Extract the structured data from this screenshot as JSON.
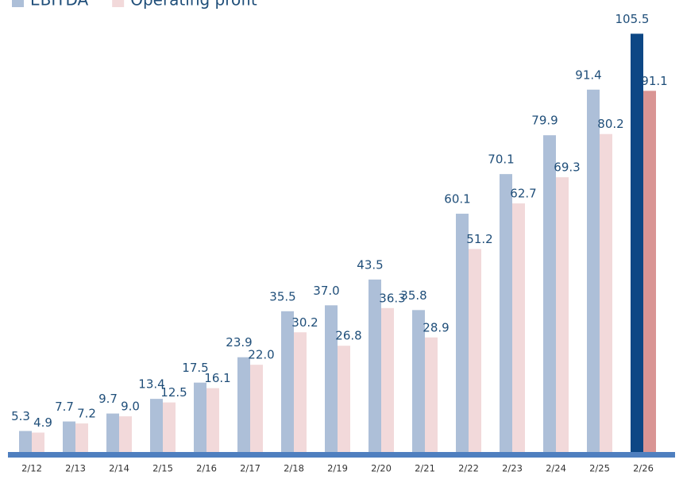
{
  "chart_data": {
    "type": "bar",
    "categories": [
      "2/12",
      "2/13",
      "2/14",
      "2/15",
      "2/16",
      "2/17",
      "2/18",
      "2/19",
      "2/20",
      "2/21",
      "2/22",
      "2/23",
      "2/24",
      "2/25",
      "2/26"
    ],
    "series": [
      {
        "name": "EBITDA",
        "color": "#adbfd8",
        "colors": [
          "#adbfd8",
          "#adbfd8",
          "#adbfd8",
          "#adbfd8",
          "#adbfd8",
          "#adbfd8",
          "#adbfd8",
          "#adbfd8",
          "#adbfd8",
          "#adbfd8",
          "#adbfd8",
          "#adbfd8",
          "#adbfd8",
          "#adbfd8",
          "#0d4785"
        ],
        "values": [
          5.3,
          7.7,
          9.7,
          13.4,
          17.5,
          23.9,
          35.5,
          37.0,
          43.5,
          35.8,
          60.1,
          70.1,
          79.9,
          91.4,
          105.5
        ],
        "value_labels": [
          "5.3",
          "7.7",
          "9.7",
          "13.4",
          "17.5",
          "23.9",
          "35.5",
          "37.0",
          "43.5",
          "35.8",
          "60.1",
          "70.1",
          "79.9",
          "91.4",
          "105.5"
        ]
      },
      {
        "name": "Operating profit",
        "color": "#f2d9da",
        "colors": [
          "#f2d9da",
          "#f2d9da",
          "#f2d9da",
          "#f2d9da",
          "#f2d9da",
          "#f2d9da",
          "#f2d9da",
          "#f2d9da",
          "#f2d9da",
          "#f2d9da",
          "#f2d9da",
          "#f2d9da",
          "#f2d9da",
          "#f2d9da",
          "#d99594"
        ],
        "values": [
          4.9,
          7.2,
          9.0,
          12.5,
          16.1,
          22.0,
          30.2,
          26.8,
          36.3,
          28.9,
          51.2,
          62.7,
          69.3,
          80.2,
          91.1
        ],
        "value_labels": [
          "4.9",
          "7.2",
          "9.0",
          "12.5",
          "16.1",
          "22.0",
          "30.2",
          "26.8",
          "36.3",
          "28.9",
          "51.2",
          "62.7",
          "69.3",
          "80.2",
          "91.1"
        ]
      }
    ],
    "ylim": [
      0,
      110
    ],
    "legend": "top-left"
  }
}
